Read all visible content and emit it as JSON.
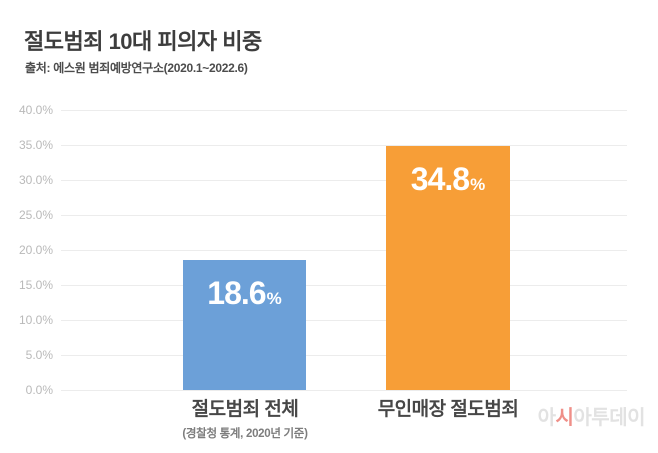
{
  "chart_data": {
    "type": "bar",
    "title": "절도범죄 10대 피의자 비중",
    "source": "출처: 에스원 범죄예방연구소(2020.1~2022.6)",
    "categories": [
      "절도범죄 전체",
      "무인매장 절도범죄"
    ],
    "category_subnotes": [
      "(경찰청 통계, 2020년 기준)",
      ""
    ],
    "values": [
      18.6,
      34.8
    ],
    "value_labels": [
      "18.6",
      "34.8"
    ],
    "unit": "%",
    "bar_colors": [
      "#6CA0D8",
      "#F79E37"
    ],
    "xlabel": "",
    "ylabel": "",
    "ylim": [
      0,
      40
    ],
    "yticks": [
      "40.0%",
      "35.0%",
      "30.0%",
      "25.0%",
      "20.0%",
      "15.0%",
      "10.0%",
      "5.0%",
      "0.0%"
    ],
    "grid": true,
    "legend": false
  },
  "watermark": {
    "part1": "아",
    "accent": "시",
    "part2": "아투데이",
    "color": "#e2e2e2",
    "accent_color": "#ef8f88"
  }
}
